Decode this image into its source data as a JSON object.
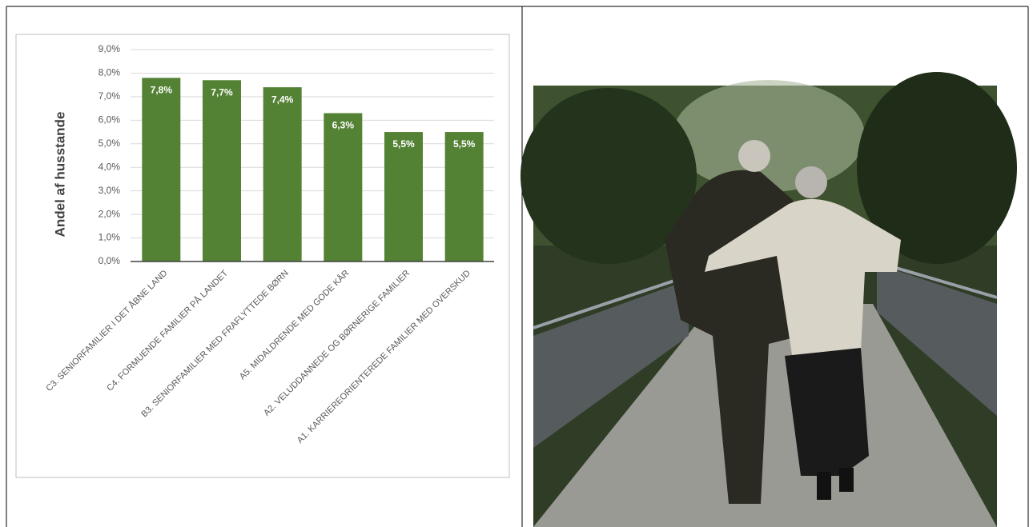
{
  "chart_data": {
    "type": "bar",
    "y_label": "Andel af husstande",
    "categories": [
      "C3. SENIORFAMILIER I DET ÅBNE LAND",
      "C4. FORMUENDE FAMILIER PÅ LANDET",
      "B3. SENIORFAMILIER MED FRAFLYTTEDE BØRN",
      "A5. MIDALDRENDE MED GODE KÅR",
      "A2. VELUDDANNEDE OG BØRNERIGE FAMILIER",
      "A1. KARRIEREORIENTEREDE FAMILIER MED OVERSKUD"
    ],
    "values": [
      7.8,
      7.7,
      7.4,
      6.3,
      5.5,
      5.5
    ],
    "value_labels": [
      "7,8%",
      "7,7%",
      "7,4%",
      "6,3%",
      "5,5%",
      "5,5%"
    ],
    "color": "#548235",
    "ylim": [
      0,
      9
    ],
    "yticks": [
      {
        "value": 0,
        "label": "0,0%"
      },
      {
        "value": 1,
        "label": "1,0%"
      },
      {
        "value": 2,
        "label": "2,0%"
      },
      {
        "value": 3,
        "label": "3,0%"
      },
      {
        "value": 4,
        "label": "4,0%"
      },
      {
        "value": 5,
        "label": "5,0%"
      },
      {
        "value": 6,
        "label": "6,0%"
      },
      {
        "value": 7,
        "label": "7,0%"
      },
      {
        "value": 8,
        "label": "8,0%"
      },
      {
        "value": 9,
        "label": "9,0%"
      }
    ],
    "grid": true
  }
}
